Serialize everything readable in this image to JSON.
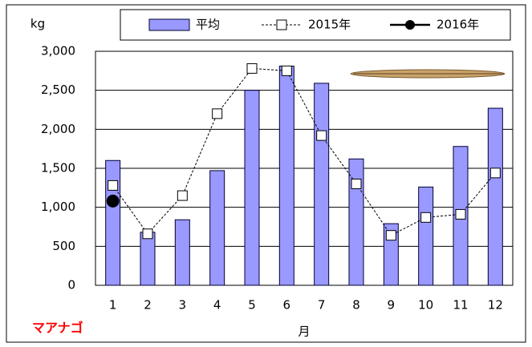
{
  "chart_data": {
    "type": "bar",
    "y_label": "kg",
    "x_label": "月",
    "annotation": "マアナゴ",
    "categories": [
      "1",
      "2",
      "3",
      "4",
      "5",
      "6",
      "7",
      "8",
      "9",
      "10",
      "11",
      "12"
    ],
    "series": [
      {
        "name": "平均",
        "type": "bar",
        "color": "#9999ff",
        "values": [
          1600,
          680,
          840,
          1470,
          2500,
          2810,
          2590,
          1620,
          790,
          1260,
          1780,
          2270
        ]
      },
      {
        "name": "2015年",
        "type": "line",
        "dashed": true,
        "marker": "square",
        "color": "#000000",
        "values": [
          1280,
          660,
          1150,
          2200,
          2780,
          2750,
          1920,
          1300,
          640,
          870,
          910,
          1440
        ]
      },
      {
        "name": "2016年",
        "type": "line",
        "dashed": false,
        "marker": "circle",
        "color": "#000000",
        "values": [
          1080,
          null,
          null,
          null,
          null,
          null,
          null,
          null,
          null,
          null,
          null,
          null
        ]
      }
    ],
    "ylim": [
      0,
      3000
    ],
    "yticks": [
      0,
      500,
      {
        "value": 1000,
        "label": "1,000"
      },
      {
        "value": 1500,
        "label": "1,500"
      },
      {
        "value": 2000,
        "label": "2,000"
      },
      {
        "value": 2500,
        "label": "2,500"
      },
      {
        "value": 3000,
        "label": "3,000"
      }
    ],
    "grid": true
  }
}
